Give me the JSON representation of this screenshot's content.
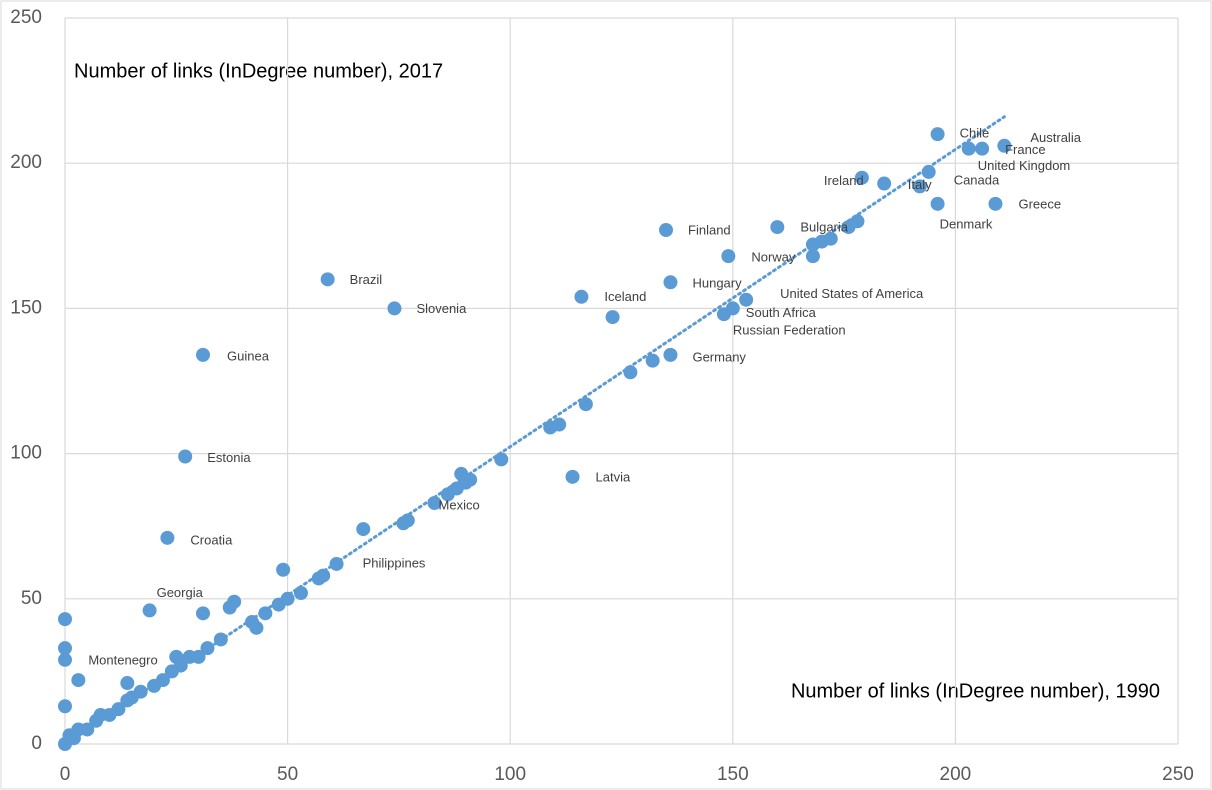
{
  "chart_data": {
    "type": "scatter",
    "xlabel": "Number of links (InDegree number), 1990",
    "ylabel": "Number of links (InDegree number), 2017",
    "color": "#5b9bd5",
    "x": [
      196,
      211,
      206,
      203,
      194,
      192,
      179,
      196,
      209,
      135,
      160,
      149,
      136,
      116,
      153,
      150,
      148,
      136,
      59,
      74,
      31,
      27,
      23,
      19,
      3,
      114,
      83,
      61,
      0,
      1,
      2,
      3,
      5,
      7,
      8,
      10,
      12,
      14,
      15,
      17,
      20,
      22,
      24,
      25,
      26,
      28,
      30,
      0,
      0,
      0,
      0,
      14,
      31,
      32,
      35,
      37,
      38,
      43,
      42,
      45,
      48,
      49,
      50,
      53,
      57,
      58,
      67,
      76,
      77,
      86,
      88,
      89,
      90,
      91,
      98,
      109,
      111,
      117,
      123,
      127,
      132,
      168,
      168,
      170,
      172,
      176,
      178,
      184
    ],
    "y": [
      210,
      206,
      205,
      205,
      197,
      192,
      195,
      186,
      186,
      177,
      178,
      168,
      159,
      154,
      153,
      150,
      148,
      134,
      160,
      150,
      134,
      99,
      71,
      46,
      22,
      92,
      83,
      62,
      0,
      3,
      2,
      5,
      5,
      8,
      10,
      10,
      12,
      15,
      16,
      18,
      20,
      22,
      25,
      30,
      27,
      30,
      30,
      13,
      29,
      33,
      43,
      21,
      45,
      33,
      36,
      47,
      49,
      40,
      42,
      45,
      48,
      60,
      50,
      52,
      57,
      58,
      74,
      76,
      77,
      86,
      88,
      93,
      90,
      91,
      98,
      109,
      110,
      117,
      147,
      128,
      132,
      168,
      172,
      173,
      174,
      178,
      180,
      193
    ],
    "labels": [
      "Chile",
      "Australia",
      "France",
      "United Kingdom",
      "Canada",
      "Italy",
      "Ireland",
      "Denmark",
      "Greece",
      "Finland",
      "Bulgaria",
      "Norway",
      "Hungary",
      "Iceland",
      "United States of America",
      "South Africa",
      "Russian Federation",
      "Germany",
      "Brazil",
      "Slovenia",
      "Guinea",
      "Estonia",
      "Croatia",
      "Georgia",
      "Montenegro",
      "Latvia",
      "Mexico",
      "Philippines",
      null,
      null,
      null,
      null,
      null,
      null,
      null,
      null,
      null,
      null,
      null,
      null,
      null,
      null,
      null,
      null,
      null,
      null,
      null,
      null,
      null,
      null,
      null,
      null,
      null,
      null,
      null,
      null,
      null,
      null,
      null,
      null,
      null,
      null,
      null,
      null,
      null,
      null,
      null,
      null,
      null,
      null,
      null,
      null,
      null,
      null,
      null,
      null,
      null,
      null,
      null,
      null,
      null,
      null,
      null,
      null,
      null,
      null,
      null,
      null
    ],
    "trendline": {
      "x": [
        0,
        211
      ],
      "y": [
        0,
        216
      ]
    },
    "xlim": [
      0,
      250
    ],
    "ylim": [
      0,
      250
    ],
    "xticks": [
      0,
      50,
      100,
      150,
      200,
      250
    ],
    "yticks": [
      0,
      50,
      100,
      150,
      200,
      250
    ],
    "grid": true
  }
}
